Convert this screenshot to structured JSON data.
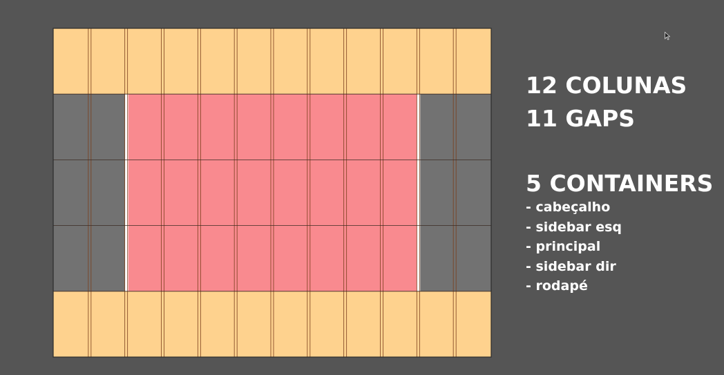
{
  "colors": {
    "background": "#555555",
    "header_footer": "#fed28e",
    "sidebar": "#727272",
    "main": "#f98a8f",
    "gap_white": "#ffffff",
    "line": "#7a3e1c",
    "text": "#ffffff"
  },
  "grid": {
    "columns": 12,
    "gaps": 11,
    "rows": 5,
    "containers": {
      "cabecalho": {
        "row_start": 0,
        "row_end": 1,
        "col_start": 0,
        "col_end": 12
      },
      "sidebar_esq": {
        "row_start": 1,
        "row_end": 4,
        "col_start": 0,
        "col_end": 2
      },
      "principal": {
        "row_start": 1,
        "row_end": 4,
        "col_start": 2,
        "col_end": 10
      },
      "sidebar_dir": {
        "row_start": 1,
        "row_end": 4,
        "col_start": 10,
        "col_end": 12
      },
      "rodape": {
        "row_start": 4,
        "row_end": 5,
        "col_start": 0,
        "col_end": 12
      }
    }
  },
  "info": {
    "columns_text": "12 COLUNAS",
    "gaps_text": "11 GAPS",
    "containers_text": "5 CONTAINERS",
    "containers_list": [
      "- cabeçalho",
      "- sidebar esq",
      "- principal",
      "- sidebar dir",
      "- rodapé"
    ]
  },
  "cursor_icon": "mouse-pointer-icon"
}
